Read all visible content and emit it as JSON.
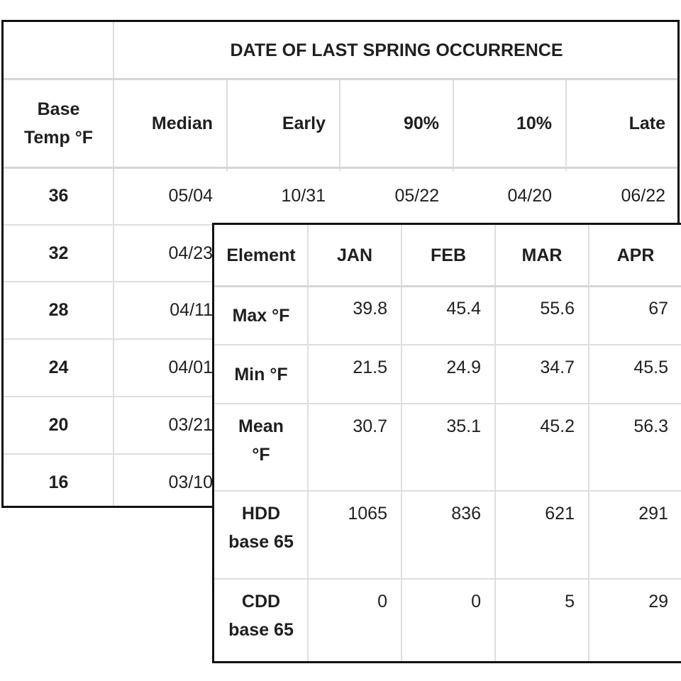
{
  "spring_table": {
    "group_header": "DATE OF LAST SPRING OCCURRENCE",
    "base_temp_header": "Base\nTemp °F",
    "columns": [
      "Median",
      "Early",
      "90%",
      "10%",
      "Late"
    ],
    "rows": [
      {
        "base": "36",
        "values": [
          "05/04",
          "10/31",
          "05/22",
          "04/20",
          "06/22"
        ]
      },
      {
        "base": "32",
        "values": [
          "04/23"
        ]
      },
      {
        "base": "28",
        "values": [
          "04/11"
        ]
      },
      {
        "base": "24",
        "values": [
          "04/01"
        ]
      },
      {
        "base": "20",
        "values": [
          "03/21"
        ]
      },
      {
        "base": "16",
        "values": [
          "03/10"
        ]
      }
    ]
  },
  "monthly_table": {
    "headers": [
      "Element",
      "JAN",
      "FEB",
      "MAR",
      "APR"
    ],
    "rows": [
      {
        "label": "Max °F",
        "values": [
          "39.8",
          "45.4",
          "55.6",
          "67"
        ]
      },
      {
        "label": "Min °F",
        "values": [
          "21.5",
          "24.9",
          "34.7",
          "45.5"
        ]
      },
      {
        "label": "Mean\n°F",
        "values": [
          "30.7",
          "35.1",
          "45.2",
          "56.3"
        ]
      },
      {
        "label": "HDD\nbase 65",
        "values": [
          "1065",
          "836",
          "621",
          "291"
        ]
      },
      {
        "label": "CDD\nbase 65",
        "values": [
          "0",
          "0",
          "5",
          "29"
        ]
      }
    ]
  },
  "colors": {
    "border": "#111111",
    "grid": "#dedede",
    "text": "#212121"
  }
}
